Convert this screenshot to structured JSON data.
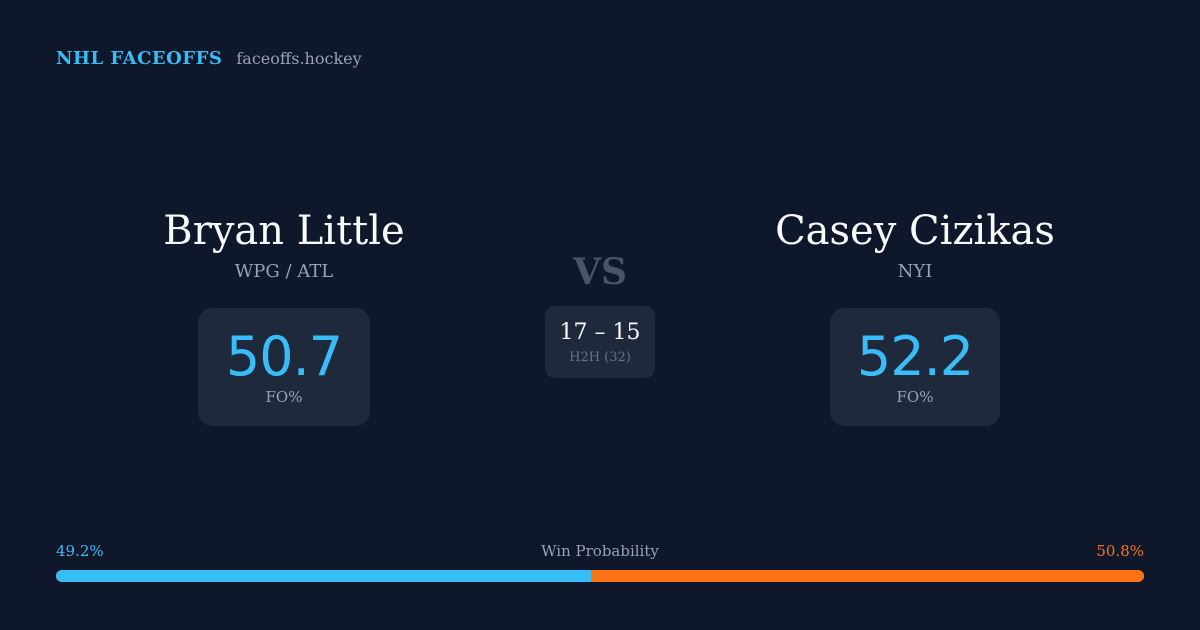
{
  "brand": {
    "name": "NHL FACEOFFS",
    "domain": "faceoffs.hockey"
  },
  "players": [
    {
      "name": "Bryan Little",
      "team": "WPG / ATL",
      "fo_pct": "50.7",
      "fo_label": "FO%"
    },
    {
      "name": "Casey Cizikas",
      "team": "NYI",
      "fo_pct": "52.2",
      "fo_label": "FO%"
    }
  ],
  "versus": {
    "label": "VS",
    "h2h_score": "17 – 15",
    "h2h_label": "H2H (32)"
  },
  "win_probability": {
    "title": "Win Probability",
    "left_label": "49.2%",
    "right_label": "50.8%",
    "left_value": 49.2,
    "right_value": 50.8,
    "left_color": "#38bdf8",
    "right_color": "#f97316"
  },
  "colors": {
    "background": "#0f172a",
    "card": "#1e293b",
    "accent": "#38bdf8",
    "secondary_accent": "#f97316"
  }
}
